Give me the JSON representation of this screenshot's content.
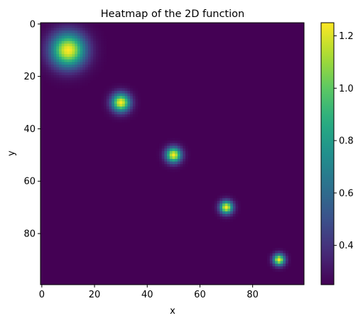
{
  "chart_data": {
    "type": "heatmap",
    "title": "Heatmap of the 2D function",
    "xlabel": "x",
    "ylabel": "y",
    "grid_size": [
      100,
      100
    ],
    "xlim": [
      0,
      99
    ],
    "ylim": [
      99,
      0
    ],
    "x_ticks": [
      0,
      20,
      40,
      60,
      80
    ],
    "y_ticks": [
      0,
      20,
      40,
      60,
      80
    ],
    "colormap": "viridis",
    "grid": false,
    "color_range": [
      0.25,
      1.25
    ],
    "colorbar_ticks": [
      "0.4",
      "0.6",
      "0.8",
      "1.0",
      "1.2"
    ],
    "colorbar_tick_values": [
      0.4,
      0.6,
      0.8,
      1.0,
      1.2
    ],
    "background_value": 0.25,
    "peaks": [
      {
        "x": 10,
        "y": 10,
        "peak": 1.25,
        "sigma": 4.5
      },
      {
        "x": 30,
        "y": 30,
        "peak": 1.25,
        "sigma": 2.4
      },
      {
        "x": 50,
        "y": 50,
        "peak": 1.25,
        "sigma": 2.0
      },
      {
        "x": 70,
        "y": 70,
        "peak": 1.25,
        "sigma": 1.7
      },
      {
        "x": 90,
        "y": 90,
        "peak": 1.25,
        "sigma": 1.5
      }
    ]
  }
}
